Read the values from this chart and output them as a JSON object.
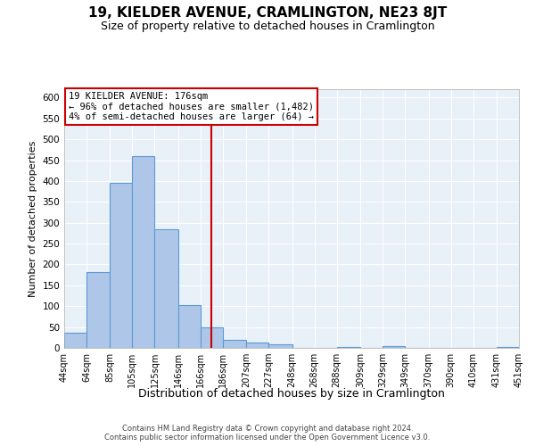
{
  "title": "19, KIELDER AVENUE, CRAMLINGTON, NE23 8JT",
  "subtitle": "Size of property relative to detached houses in Cramlington",
  "xlabel": "Distribution of detached houses by size in Cramlington",
  "ylabel": "Number of detached properties",
  "footer_line1": "Contains HM Land Registry data © Crown copyright and database right 2024.",
  "footer_line2": "Contains public sector information licensed under the Open Government Licence v3.0.",
  "annotation_line1": "19 KIELDER AVENUE: 176sqm",
  "annotation_line2": "← 96% of detached houses are smaller (1,482)",
  "annotation_line3": "4% of semi-detached houses are larger (64) →",
  "bar_edges": [
    44,
    64,
    85,
    105,
    125,
    146,
    166,
    186,
    207,
    227,
    248,
    268,
    288,
    309,
    329,
    349,
    370,
    390,
    410,
    431,
    451
  ],
  "bar_heights": [
    37,
    182,
    395,
    460,
    285,
    103,
    50,
    20,
    13,
    8,
    0,
    0,
    3,
    0,
    5,
    0,
    0,
    0,
    0,
    3
  ],
  "bar_color": "#aec6e8",
  "bar_edge_color": "#5b9bd5",
  "vline_x": 176,
  "vline_color": "#cc0000",
  "ylim": [
    0,
    620
  ],
  "yticks": [
    0,
    50,
    100,
    150,
    200,
    250,
    300,
    350,
    400,
    450,
    500,
    550,
    600
  ],
  "bg_color": "#e8f0f8",
  "annotation_box_color": "#cc0000",
  "title_fontsize": 11,
  "subtitle_fontsize": 9,
  "ylabel_fontsize": 8,
  "xlabel_fontsize": 9,
  "footer_fontsize": 6
}
